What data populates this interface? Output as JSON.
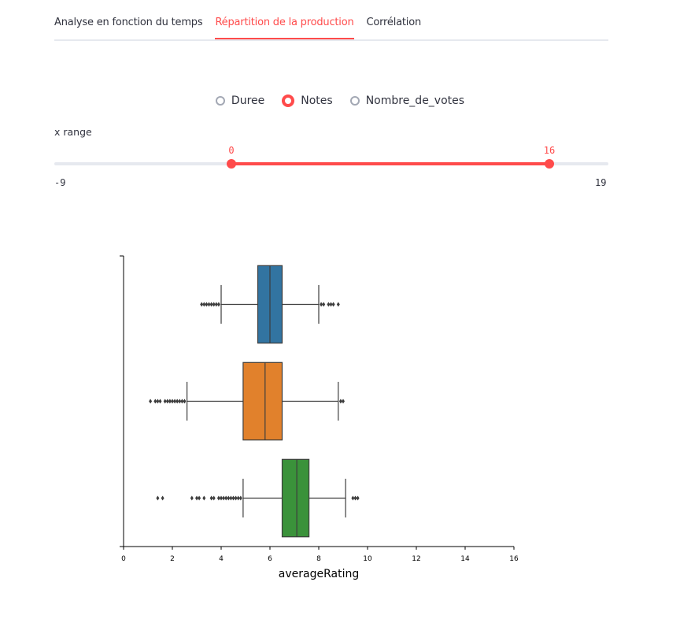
{
  "tabs": [
    {
      "label": "Analyse en fonction du temps",
      "active": false
    },
    {
      "label": "Répartition de la production",
      "active": true
    },
    {
      "label": "Corrélation",
      "active": false
    }
  ],
  "radio": {
    "options": [
      "Duree",
      "Notes",
      "Nombre_de_votes"
    ],
    "selected": "Notes"
  },
  "slider": {
    "label": "x range",
    "min": -9,
    "max": 19,
    "low": 0,
    "high": 16,
    "min_label": "-9",
    "max_label": "19",
    "low_label": "0",
    "high_label": "16"
  },
  "colors": {
    "accent": "#ff4b4b",
    "series": [
      "#3274a1",
      "#e1812c",
      "#3a923a"
    ]
  },
  "chart_data": {
    "type": "boxplot",
    "orientation": "horizontal",
    "xlabel": "averageRating",
    "ylabel": "",
    "xlim": [
      0,
      16
    ],
    "xticks": [
      "0",
      "2",
      "4",
      "6",
      "8",
      "10",
      "12",
      "14",
      "16"
    ],
    "series": [
      {
        "color": "#3274a1",
        "whisker_low": 4.0,
        "q1": 5.5,
        "median": 6.0,
        "q3": 6.5,
        "whisker_high": 8.0,
        "outliers": [
          3.2,
          3.3,
          3.4,
          3.5,
          3.6,
          3.7,
          3.8,
          3.9,
          8.1,
          8.2,
          8.4,
          8.5,
          8.6,
          8.8
        ]
      },
      {
        "color": "#e1812c",
        "whisker_low": 2.6,
        "q1": 4.9,
        "median": 5.8,
        "q3": 6.5,
        "whisker_high": 8.8,
        "outliers": [
          1.1,
          1.3,
          1.4,
          1.5,
          1.7,
          1.8,
          1.9,
          2.0,
          2.1,
          2.2,
          2.3,
          2.4,
          2.5,
          8.9,
          9.0
        ]
      },
      {
        "color": "#3a923a",
        "whisker_low": 4.9,
        "q1": 6.5,
        "median": 7.1,
        "q3": 7.6,
        "whisker_high": 9.1,
        "outliers": [
          1.4,
          1.6,
          2.8,
          3.0,
          3.1,
          3.3,
          3.6,
          3.7,
          3.9,
          4.0,
          4.1,
          4.2,
          4.3,
          4.4,
          4.5,
          4.6,
          4.7,
          4.8,
          9.4,
          9.5,
          9.6
        ]
      }
    ]
  }
}
